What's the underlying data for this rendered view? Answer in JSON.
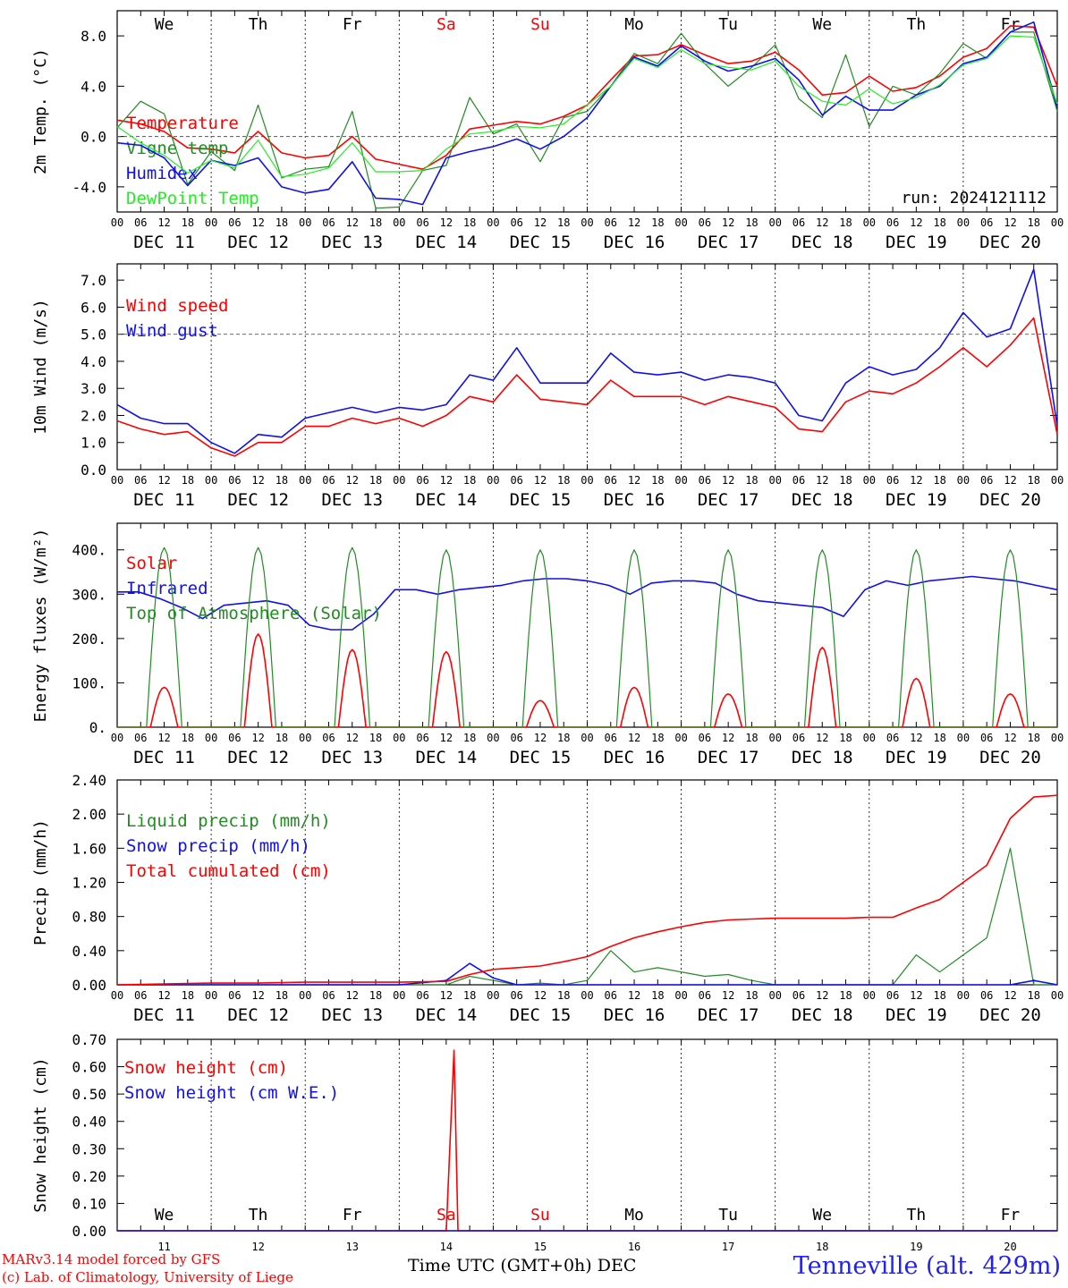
{
  "days": {
    "weekdays": [
      "We",
      "Th",
      "Fr",
      "Sa",
      "Su",
      "Mo",
      "Tu",
      "We",
      "Th",
      "Fr"
    ],
    "weekday_colors": [
      "#000000",
      "#000000",
      "#000000",
      "#ff0000",
      "#ff0000",
      "#000000",
      "#000000",
      "#000000",
      "#000000",
      "#000000"
    ],
    "dates": [
      "DEC 11",
      "DEC 12",
      "DEC 13",
      "DEC 14",
      "DEC 15",
      "DEC 16",
      "DEC 17",
      "DEC 18",
      "DEC 19",
      "DEC 20"
    ],
    "day_numbers": [
      "11",
      "12",
      "13",
      "14",
      "15",
      "16",
      "17",
      "18",
      "19",
      "20"
    ],
    "hour_labels": [
      "00",
      "06",
      "12",
      "18"
    ],
    "final_hour_label": "00"
  },
  "colors": {
    "red": "#ff0000",
    "green": "#228b22",
    "blue": "#1010ee",
    "lightgreen": "#22ee22"
  },
  "footer": {
    "credit_line1": "MARv3.14 model forced by GFS",
    "credit_line2": "(c) Lab. of Climatology, University of Liege",
    "xaxis_label": "Time UTC (GMT+0h)",
    "xaxis_month": "DEC",
    "station": "Tenneville (alt. 429m)"
  },
  "chart_data": [
    {
      "type": "line",
      "ylabel": "2m Temp. (°C)",
      "ylim": [
        -6.0,
        10.0
      ],
      "yticks": [
        -4.0,
        0.0,
        4.0,
        8.0
      ],
      "ytick_labels": [
        "-4.0",
        "0.0",
        "4.0",
        "8.0"
      ],
      "reference_line": 0.0,
      "annotation": "run: 2024121112",
      "x_hours": [
        0,
        6,
        12,
        18,
        24,
        30,
        36,
        42,
        48,
        54,
        60,
        66,
        72,
        78,
        84,
        90,
        96,
        102,
        108,
        114,
        120,
        126,
        132,
        138,
        144,
        150,
        156,
        162,
        168,
        174,
        180,
        186,
        192,
        198,
        204,
        210,
        216,
        222,
        228,
        234,
        240
      ],
      "series": [
        {
          "name": "Temperature",
          "color": "red",
          "values": [
            1.3,
            1.0,
            0.4,
            -0.9,
            -1.0,
            -1.3,
            0.4,
            -1.3,
            -1.7,
            -1.5,
            0.0,
            -1.8,
            -2.2,
            -2.6,
            -1.5,
            0.6,
            0.9,
            1.2,
            1.0,
            1.6,
            2.5,
            4.5,
            6.4,
            6.5,
            7.3,
            6.5,
            5.8,
            6.0,
            6.7,
            5.3,
            3.3,
            3.5,
            4.8,
            3.6,
            3.9,
            4.8,
            6.3,
            7.0,
            8.8,
            8.7,
            4.0
          ]
        },
        {
          "name": "Vigne temp",
          "color": "green",
          "values": [
            0.7,
            2.8,
            1.8,
            -3.8,
            -1.2,
            -2.7,
            2.5,
            -3.3,
            -2.6,
            -2.4,
            2.0,
            -5.7,
            -5.6,
            -2.7,
            -2.3,
            3.1,
            0.2,
            1.0,
            -2.0,
            1.5,
            2.0,
            4.0,
            6.6,
            5.8,
            8.2,
            5.8,
            4.0,
            5.5,
            7.3,
            3.0,
            1.5,
            6.5,
            0.8,
            4.0,
            3.3,
            5.0,
            7.4,
            6.2,
            8.3,
            8.3,
            2.0
          ]
        },
        {
          "name": "Humidex",
          "color": "blue",
          "values": [
            -0.5,
            -0.7,
            -1.7,
            -3.9,
            -1.9,
            -2.3,
            -1.7,
            -4.0,
            -4.5,
            -4.2,
            -2.0,
            -4.9,
            -5.0,
            -5.4,
            -1.7,
            -1.2,
            -0.8,
            -0.2,
            -1.0,
            0.0,
            1.5,
            4.0,
            6.3,
            5.6,
            7.2,
            6.0,
            5.2,
            5.6,
            6.2,
            4.5,
            1.7,
            3.2,
            2.1,
            2.1,
            3.3,
            4.0,
            5.8,
            6.3,
            8.3,
            9.1,
            2.3
          ]
        },
        {
          "name": "DewPoint Temp",
          "color": "lightgreen",
          "values": [
            0.8,
            -0.5,
            -1.5,
            -2.9,
            -1.9,
            -2.5,
            -0.3,
            -3.2,
            -3.0,
            -2.5,
            -0.5,
            -2.8,
            -2.8,
            -2.7,
            -1.0,
            0.2,
            0.4,
            0.8,
            0.7,
            1.0,
            2.5,
            4.0,
            6.2,
            5.5,
            6.9,
            5.8,
            5.5,
            5.3,
            6.0,
            4.0,
            2.8,
            2.5,
            3.8,
            2.6,
            3.1,
            4.1,
            5.7,
            6.2,
            8.0,
            7.9,
            2.6
          ]
        }
      ]
    },
    {
      "type": "line",
      "ylabel": "10m Wind (m/s)",
      "ylim": [
        0.0,
        7.6
      ],
      "yticks": [
        0.0,
        1.0,
        2.0,
        3.0,
        4.0,
        5.0,
        6.0,
        7.0
      ],
      "ytick_labels": [
        "0.0",
        "1.0",
        "2.0",
        "3.0",
        "4.0",
        "5.0",
        "6.0",
        "7.0"
      ],
      "reference_line": 5.0,
      "x_hours": [
        0,
        6,
        12,
        18,
        24,
        30,
        36,
        42,
        48,
        54,
        60,
        66,
        72,
        78,
        84,
        90,
        96,
        102,
        108,
        114,
        120,
        126,
        132,
        138,
        144,
        150,
        156,
        162,
        168,
        174,
        180,
        186,
        192,
        198,
        204,
        210,
        216,
        222,
        228,
        234,
        240
      ],
      "series": [
        {
          "name": "Wind speed",
          "color": "red",
          "values": [
            1.8,
            1.5,
            1.3,
            1.4,
            0.8,
            0.5,
            1.0,
            1.0,
            1.6,
            1.6,
            1.9,
            1.7,
            1.9,
            1.6,
            2.0,
            2.7,
            2.5,
            3.5,
            2.6,
            2.5,
            2.4,
            3.3,
            2.7,
            2.7,
            2.7,
            2.4,
            2.7,
            2.5,
            2.3,
            1.5,
            1.4,
            2.5,
            2.9,
            2.8,
            3.2,
            3.8,
            4.5,
            3.8,
            4.6,
            5.6,
            1.3
          ]
        },
        {
          "name": "Wind gust",
          "color": "blue",
          "values": [
            2.4,
            1.9,
            1.7,
            1.7,
            1.0,
            0.6,
            1.3,
            1.2,
            1.9,
            2.1,
            2.3,
            2.1,
            2.3,
            2.2,
            2.4,
            3.5,
            3.3,
            4.5,
            3.2,
            3.2,
            3.2,
            4.3,
            3.6,
            3.5,
            3.6,
            3.3,
            3.5,
            3.4,
            3.2,
            2.0,
            1.8,
            3.2,
            3.8,
            3.5,
            3.7,
            4.5,
            5.8,
            4.9,
            5.2,
            7.4,
            1.6
          ]
        }
      ]
    },
    {
      "type": "line",
      "ylabel": "Energy fluxes (W/m²)",
      "ylim": [
        0,
        460
      ],
      "yticks": [
        0,
        100,
        200,
        300,
        400
      ],
      "ytick_labels": [
        "0.",
        "100.",
        "200.",
        "300.",
        "400."
      ],
      "x_hours_note": "diurnal curves repeat daily",
      "daily_peak_hour": 12,
      "series": [
        {
          "name": "Solar",
          "color": "red",
          "daily_peaks": [
            90,
            210,
            175,
            170,
            60,
            90,
            75,
            180,
            110,
            75
          ]
        },
        {
          "name": "Infrared",
          "color": "blue",
          "values_6h": [
            305,
            305,
            290,
            270,
            245,
            275,
            280,
            285,
            275,
            230,
            220,
            220,
            255,
            310,
            310,
            300,
            310,
            315,
            320,
            330,
            335,
            335,
            330,
            320,
            300,
            325,
            330,
            330,
            325,
            300,
            285,
            280,
            275,
            270,
            250,
            310,
            330,
            320,
            330,
            335,
            340,
            335,
            330,
            320,
            310
          ]
        },
        {
          "name": "Top of Atmosphere (Solar)",
          "color": "green",
          "daily_peaks": [
            405,
            405,
            405,
            400,
            400,
            400,
            400,
            400,
            400,
            400
          ]
        }
      ]
    },
    {
      "type": "line",
      "ylabel": "Precip (mm/h)",
      "ylim": [
        0.0,
        2.4
      ],
      "yticks": [
        0.0,
        0.4,
        0.8,
        1.2,
        1.6,
        2.0,
        2.4
      ],
      "ytick_labels": [
        "0.00",
        "0.40",
        "0.80",
        "1.20",
        "1.60",
        "2.00",
        "2.40"
      ],
      "x_hours": [
        0,
        12,
        24,
        36,
        48,
        60,
        72,
        84,
        90,
        96,
        102,
        108,
        114,
        120,
        126,
        132,
        138,
        144,
        150,
        156,
        162,
        168,
        174,
        180,
        186,
        192,
        198,
        204,
        210,
        216,
        222,
        228,
        234,
        240
      ],
      "series": [
        {
          "name": "Liquid precip (mm/h)",
          "color": "green",
          "values": [
            0,
            0,
            0,
            0,
            0,
            0,
            0,
            0,
            0.1,
            0.05,
            0,
            0.02,
            0,
            0.05,
            0.4,
            0.15,
            0.2,
            0.15,
            0.1,
            0.12,
            0.05,
            0,
            0,
            0,
            0,
            0,
            0,
            0.35,
            0.15,
            0.35,
            0.55,
            1.6,
            0,
            0
          ]
        },
        {
          "name": "Snow precip (mm/h)",
          "color": "blue",
          "values": [
            0,
            0,
            0,
            0,
            0,
            0,
            0,
            0.05,
            0.25,
            0.08,
            0,
            0,
            0,
            0,
            0,
            0,
            0,
            0,
            0,
            0,
            0,
            0,
            0,
            0,
            0,
            0,
            0,
            0,
            0,
            0,
            0,
            0,
            0.05,
            0
          ]
        },
        {
          "name": "Total cumulated (cm)",
          "color": "red",
          "values": [
            0,
            0.01,
            0.02,
            0.02,
            0.03,
            0.03,
            0.03,
            0.04,
            0.12,
            0.18,
            0.2,
            0.22,
            0.27,
            0.33,
            0.45,
            0.55,
            0.62,
            0.68,
            0.73,
            0.76,
            0.77,
            0.78,
            0.78,
            0.78,
            0.78,
            0.79,
            0.79,
            0.9,
            1.0,
            1.2,
            1.4,
            1.95,
            2.2,
            2.22
          ]
        }
      ]
    },
    {
      "type": "line",
      "ylabel": "Snow height (cm)",
      "ylim": [
        0.0,
        0.7
      ],
      "yticks": [
        0.0,
        0.1,
        0.2,
        0.3,
        0.4,
        0.5,
        0.6,
        0.7
      ],
      "ytick_labels": [
        "0.00",
        "0.10",
        "0.20",
        "0.30",
        "0.40",
        "0.50",
        "0.60",
        "0.70"
      ],
      "x_hours": [
        0,
        84,
        86,
        87,
        88,
        240
      ],
      "series": [
        {
          "name": "Snow height (cm)",
          "color": "red",
          "values": [
            0,
            0,
            0.66,
            0,
            0,
            0
          ]
        },
        {
          "name": "Snow height (cm W.E.)",
          "color": "blue",
          "values": [
            0,
            0,
            0,
            0,
            0,
            0
          ]
        }
      ]
    }
  ]
}
